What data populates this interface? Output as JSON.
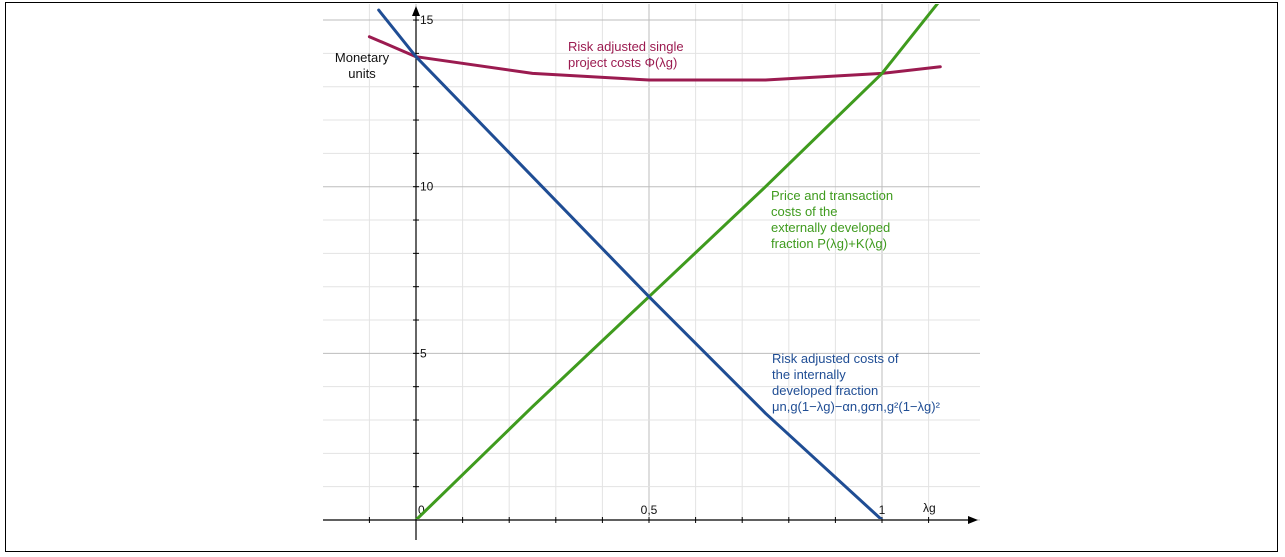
{
  "chart_data": {
    "type": "line",
    "title": "",
    "xlabel": "λg",
    "ylabel": "Monetary units",
    "xlim": [
      -0.1,
      1.125
    ],
    "ylim": [
      -0.25,
      15.3
    ],
    "grid": true,
    "x_ticks": [
      {
        "value": 0,
        "label": "0"
      },
      {
        "value": 0.5,
        "label": "0,5"
      },
      {
        "value": 1,
        "label": "1"
      }
    ],
    "y_ticks": [
      {
        "value": 5,
        "label": "5"
      },
      {
        "value": 10,
        "label": "10"
      },
      {
        "value": 15,
        "label": "15"
      }
    ],
    "series": [
      {
        "name": "Risk adjusted single project costs Φ(λg)",
        "color": "#9b1b50",
        "x": [
          -0.1,
          0,
          0.25,
          0.5,
          0.75,
          1.0,
          1.125
        ],
        "values": [
          14.5,
          13.9,
          13.4,
          13.2,
          13.2,
          13.4,
          13.6
        ]
      },
      {
        "name": "Price and transaction costs of the externally developed fraction P(λg)+K(λg)",
        "color": "#3f9b1e",
        "x": [
          -0.04,
          0,
          0.25,
          0.5,
          0.75,
          1.0,
          1.125
        ],
        "values": [
          -0.3,
          0.0,
          3.4,
          6.7,
          10.0,
          13.4,
          15.6
        ]
      },
      {
        "name": "Risk adjusted costs of the internally developed fraction μn,g(1−λg)−αn,gσn,g²(1−λg)²",
        "color": "#1f4d94",
        "x": [
          -0.08,
          0,
          0.25,
          0.5,
          0.75,
          1.0,
          1.04
        ],
        "values": [
          15.3,
          13.9,
          10.3,
          6.7,
          3.2,
          0.0,
          -0.3
        ]
      }
    ],
    "annotations": {
      "phi": [
        "Risk adjusted single",
        "project costs Φ(λg)"
      ],
      "price": [
        "Price and transaction",
        "costs of the",
        "externally developed",
        "fraction P(λg)+K(λg)"
      ],
      "risk": [
        "Risk adjusted costs of",
        "the internally",
        "developed fraction",
        "μn,g(1−λg)−αn,gσn,g²(1−λg)²"
      ]
    },
    "ylabel_lines": [
      "Monetary",
      "units"
    ]
  }
}
